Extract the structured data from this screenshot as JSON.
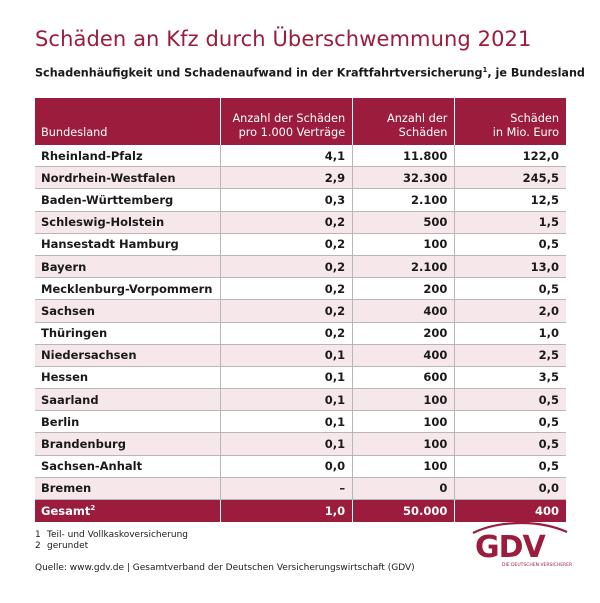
{
  "title": "Schäden an Kfz durch Überschwemmung 2021",
  "subtitle": {
    "text": "Schadenhäufigkeit und Schadenaufwand in der Kraftfahrtversicherung",
    "footnote_ref": "1",
    "suffix": ", je Bundesland"
  },
  "table": {
    "headers": {
      "land": "Bundesland",
      "frequency": "Anzahl der Schäden\npro 1.000 Verträge",
      "count": "Anzahl der\nSchäden",
      "amount": "Schäden\nin Mio. Euro"
    },
    "rows": [
      {
        "land": "Rheinland-Pfalz",
        "frequency": "4,1",
        "count": "11.800",
        "amount": "122,0"
      },
      {
        "land": "Nordrhein-Westfalen",
        "frequency": "2,9",
        "count": "32.300",
        "amount": "245,5"
      },
      {
        "land": "Baden-Württemberg",
        "frequency": "0,3",
        "count": "2.100",
        "amount": "12,5"
      },
      {
        "land": "Schleswig-Holstein",
        "frequency": "0,2",
        "count": "500",
        "amount": "1,5"
      },
      {
        "land": "Hansestadt Hamburg",
        "frequency": "0,2",
        "count": "100",
        "amount": "0,5"
      },
      {
        "land": "Bayern",
        "frequency": "0,2",
        "count": "2.100",
        "amount": "13,0"
      },
      {
        "land": "Mecklenburg-Vorpommern",
        "frequency": "0,2",
        "count": "200",
        "amount": "0,5"
      },
      {
        "land": "Sachsen",
        "frequency": "0,2",
        "count": "400",
        "amount": "2,0"
      },
      {
        "land": "Thüringen",
        "frequency": "0,2",
        "count": "200",
        "amount": "1,0"
      },
      {
        "land": "Niedersachsen",
        "frequency": "0,1",
        "count": "400",
        "amount": "2,5"
      },
      {
        "land": "Hessen",
        "frequency": "0,1",
        "count": "600",
        "amount": "3,5"
      },
      {
        "land": "Saarland",
        "frequency": "0,1",
        "count": "100",
        "amount": "0,5"
      },
      {
        "land": "Berlin",
        "frequency": "0,1",
        "count": "100",
        "amount": "0,5"
      },
      {
        "land": "Brandenburg",
        "frequency": "0,1",
        "count": "100",
        "amount": "0,5"
      },
      {
        "land": "Sachsen-Anhalt",
        "frequency": "0,0",
        "count": "100",
        "amount": "0,5"
      },
      {
        "land": "Bremen",
        "frequency": "–",
        "count": "0",
        "amount": "0,0"
      }
    ],
    "total": {
      "label": "Gesamt",
      "footnote_ref": "2",
      "frequency": "1,0",
      "count": "50.000",
      "amount": "400"
    }
  },
  "footnotes": [
    {
      "num": "1",
      "text": "Teil- und Vollkaskoversicherung"
    },
    {
      "num": "2",
      "text": "gerundet"
    }
  ],
  "source": "Quelle: www.gdv.de | Gesamtverband der Deutschen Versicherungswirtschaft (GDV)",
  "logo": {
    "text": "GDV",
    "subtext": "DIE DEUTSCHEN VERSICHERER"
  },
  "colors": {
    "brand": "#9b1c3c",
    "row_stripe": "#f6e7ea"
  }
}
